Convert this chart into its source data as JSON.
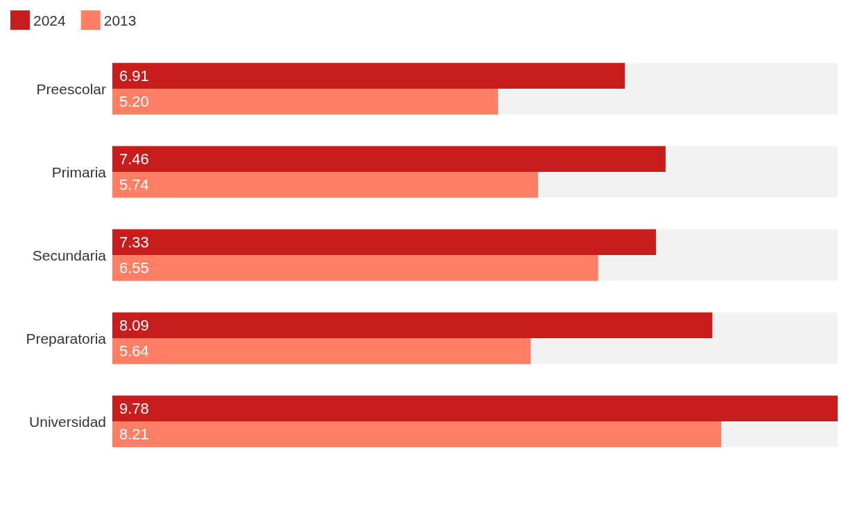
{
  "chart_data": {
    "type": "bar",
    "orientation": "horizontal",
    "categories": [
      "Preescolar",
      "Primaria",
      "Secundaria",
      "Preparatoria",
      "Universidad"
    ],
    "series": [
      {
        "name": "2024",
        "color": "#c71e1d",
        "values": [
          6.91,
          7.46,
          7.33,
          8.09,
          9.78
        ],
        "value_labels": [
          "6.91",
          "7.46",
          "7.33",
          "8.09",
          "9.78"
        ]
      },
      {
        "name": "2013",
        "color": "#ff7f65",
        "values": [
          5.2,
          5.74,
          6.55,
          5.64,
          8.21
        ],
        "value_labels": [
          "5.20",
          "5.74",
          "6.55",
          "5.64",
          "8.21"
        ]
      }
    ],
    "legend": "top left"
  }
}
